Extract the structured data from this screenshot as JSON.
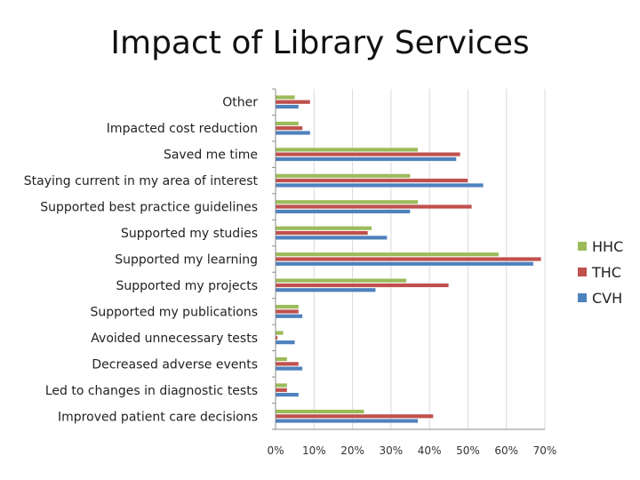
{
  "slide": {
    "title": "Impact of Library Services"
  },
  "chart_data": {
    "type": "bar",
    "orientation": "horizontal",
    "title": "Impact of Library Services",
    "categories": [
      "Other",
      "Impacted cost reduction",
      "Saved me time",
      "Staying current in my area of interest",
      "Supported best practice guidelines",
      "Supported my studies",
      "Supported my learning",
      "Supported my projects",
      "Supported my publications",
      "Avoided unnecessary tests",
      "Decreased adverse events",
      "Led to changes in diagnostic tests",
      "Improved patient care decisions"
    ],
    "series": [
      {
        "name": "HHC",
        "color": "#9bbb59",
        "values": [
          5,
          6,
          37,
          35,
          37,
          25,
          58,
          34,
          6,
          2,
          3,
          3,
          23
        ]
      },
      {
        "name": "THC",
        "color": "#c0504d",
        "values": [
          9,
          7,
          48,
          50,
          51,
          24,
          69,
          45,
          6,
          0.5,
          6,
          3,
          41
        ]
      },
      {
        "name": "CVH",
        "color": "#4f81bd",
        "values": [
          6,
          9,
          47,
          54,
          35,
          29,
          67,
          26,
          7,
          5,
          7,
          6,
          37
        ]
      }
    ],
    "xlim": [
      0,
      70
    ],
    "xticks": [
      "0%",
      "10%",
      "20%",
      "30%",
      "40%",
      "50%",
      "60%",
      "70%"
    ],
    "grid": true,
    "legend_position": "right"
  }
}
